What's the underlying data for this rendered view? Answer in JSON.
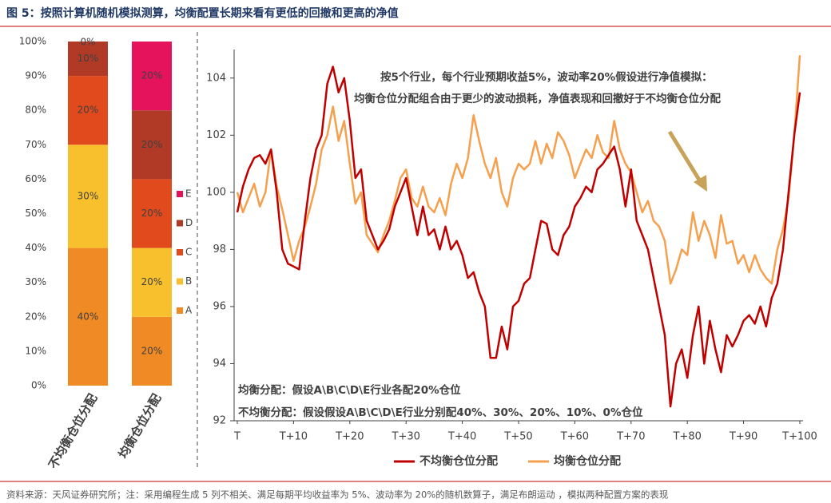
{
  "header": {
    "title": "图 5：按照计算机随机模拟测算，均衡配置长期来看有更低的回撤和更高的净值"
  },
  "chart_data": [
    {
      "type": "bar",
      "stacked": true,
      "categories": [
        "不均衡仓位分配",
        "均衡仓位分配"
      ],
      "series": [
        {
          "name": "A",
          "color": "#f08a24",
          "values": [
            40,
            20
          ],
          "value_labels": [
            "40%",
            "20%"
          ]
        },
        {
          "name": "B",
          "color": "#f9c02e",
          "values": [
            30,
            20
          ],
          "value_labels": [
            "30%",
            "20%"
          ]
        },
        {
          "name": "C",
          "color": "#e04a1c",
          "values": [
            20,
            20
          ],
          "value_labels": [
            "20%",
            "20%"
          ]
        },
        {
          "name": "D",
          "color": "#b03a26",
          "values": [
            10,
            20
          ],
          "value_labels": [
            "10%",
            "20%"
          ]
        },
        {
          "name": "E",
          "color": "#e5135c",
          "values": [
            0,
            20
          ],
          "value_labels": [
            "0%",
            "20%"
          ]
        }
      ],
      "ylim": [
        0,
        100
      ],
      "yticks": [
        {
          "value": 0,
          "label": "0%"
        },
        {
          "value": 10,
          "label": "10%"
        },
        {
          "value": 20,
          "label": "20%"
        },
        {
          "value": 30,
          "label": "30%"
        },
        {
          "value": 40,
          "label": "40%"
        },
        {
          "value": 50,
          "label": "50%"
        },
        {
          "value": 60,
          "label": "60%"
        },
        {
          "value": 70,
          "label": "70%"
        },
        {
          "value": 80,
          "label": "80%"
        },
        {
          "value": 90,
          "label": "90%"
        },
        {
          "value": 100,
          "label": "100%"
        }
      ]
    },
    {
      "type": "line",
      "annotations": [
        "按5个行业，每个行业预期收益5%，波动率20%假设进行净值模拟：",
        "均衡仓位分配组合由于更少的波动损耗，净值表现和回撤好于不均衡仓位分配",
        "均衡分配：假设A\\B\\C\\D\\E行业各配20%仓位",
        "不均衡分配：假设假设A\\B\\C\\D\\E行业分别配40%、30%、20%、10%、0%仓位"
      ],
      "x": [
        0,
        1,
        2,
        3,
        4,
        5,
        6,
        7,
        8,
        9,
        10,
        11,
        12,
        13,
        14,
        15,
        16,
        17,
        18,
        19,
        20,
        21,
        22,
        23,
        24,
        25,
        26,
        27,
        28,
        29,
        30,
        31,
        32,
        33,
        34,
        35,
        36,
        37,
        38,
        39,
        40,
        41,
        42,
        43,
        44,
        45,
        46,
        47,
        48,
        49,
        50,
        51,
        52,
        53,
        54,
        55,
        56,
        57,
        58,
        59,
        60,
        61,
        62,
        63,
        64,
        65,
        66,
        67,
        68,
        69,
        70,
        71,
        72,
        73,
        74,
        75,
        76,
        77,
        78,
        79,
        80,
        81,
        82,
        83,
        84,
        85,
        86,
        87,
        88,
        89,
        90,
        91,
        92,
        93,
        94,
        95,
        96,
        97,
        98,
        99,
        100
      ],
      "series": [
        {
          "name": "不均衡仓位分配",
          "color": "#c00000",
          "values": [
            99.3,
            100.2,
            100.8,
            101.2,
            101.3,
            101,
            101.5,
            100,
            98,
            97.5,
            97.4,
            97.3,
            99,
            100.5,
            101.5,
            102,
            103.8,
            104.4,
            103.5,
            104,
            102.5,
            100.5,
            100.8,
            99,
            98.5,
            98,
            98.3,
            98.7,
            99.5,
            100,
            100.5,
            99.5,
            98.5,
            99.5,
            98.5,
            98.7,
            98,
            98.8,
            98,
            98.3,
            97.8,
            97,
            97.2,
            96.5,
            96,
            94.2,
            94.2,
            95.3,
            94.5,
            96,
            96.2,
            96.8,
            97,
            98,
            99,
            98.9,
            98,
            97.8,
            98.5,
            98.8,
            99.5,
            99.8,
            100.2,
            100,
            100.8,
            101,
            101.3,
            101.6,
            100.8,
            99.5,
            100.8,
            99,
            98.5,
            98,
            97,
            96,
            95,
            92.5,
            94,
            94.5,
            93.5,
            95,
            96,
            94,
            95.5,
            94.5,
            93.7,
            95,
            94.6,
            95,
            95.5,
            95.7,
            95.4,
            96,
            95.3,
            96.3,
            96.8,
            98,
            100,
            102,
            103.5
          ]
        },
        {
          "name": "均衡仓位分配",
          "color": "#f6a04d",
          "values": [
            100,
            99.3,
            99.8,
            100.3,
            99.5,
            100,
            101.5,
            100.2,
            99.4,
            98.5,
            97.6,
            98.3,
            98.8,
            99.5,
            100.3,
            101.5,
            102,
            103,
            101.8,
            102.5,
            101,
            99.6,
            100,
            98.5,
            98.2,
            97.9,
            98.5,
            99,
            99.7,
            100.5,
            100.8,
            99.8,
            99.5,
            100.2,
            99.5,
            99.3,
            99.8,
            99.2,
            100.3,
            101,
            100.5,
            101.2,
            102.7,
            101.8,
            101,
            100.5,
            101.2,
            100,
            99.5,
            100.5,
            101,
            100.8,
            101,
            101.8,
            101,
            101.7,
            101.2,
            102.1,
            101.8,
            101.3,
            100.5,
            101,
            101.5,
            101.2,
            102,
            101.4,
            101.2,
            102.5,
            101.5,
            101,
            100.7,
            100,
            99.3,
            99.7,
            99,
            98.8,
            98.3,
            96.8,
            97.3,
            98,
            97.8,
            99.3,
            98.3,
            99,
            98.5,
            97.7,
            99.2,
            98.2,
            98.3,
            97.5,
            97.8,
            97.2,
            97.8,
            97.3,
            97,
            96.8,
            98,
            98.7,
            99.8,
            102,
            104.8
          ]
        }
      ],
      "xlim": [
        0,
        100
      ],
      "xticks": [
        {
          "value": 0,
          "label": "T"
        },
        {
          "value": 10,
          "label": "T+10"
        },
        {
          "value": 20,
          "label": "T+20"
        },
        {
          "value": 30,
          "label": "T+30"
        },
        {
          "value": 40,
          "label": "T+40"
        },
        {
          "value": 50,
          "label": "T+50"
        },
        {
          "value": 60,
          "label": "T+60"
        },
        {
          "value": 70,
          "label": "T+70"
        },
        {
          "value": 80,
          "label": "T+80"
        },
        {
          "value": 90,
          "label": "T+90"
        },
        {
          "value": 100,
          "label": "T+100"
        }
      ],
      "ylim": [
        92,
        105
      ],
      "yticks": [
        92,
        94,
        96,
        98,
        100,
        102,
        104
      ]
    }
  ],
  "footer": {
    "source": "资料来源：天风证券研究所；注：采用编程生成 5 列不相关、满足每期平均收益率为 5%、波动率为 20%的随机数算子，满足布朗运动 ，模拟两种配置方案的表现"
  }
}
